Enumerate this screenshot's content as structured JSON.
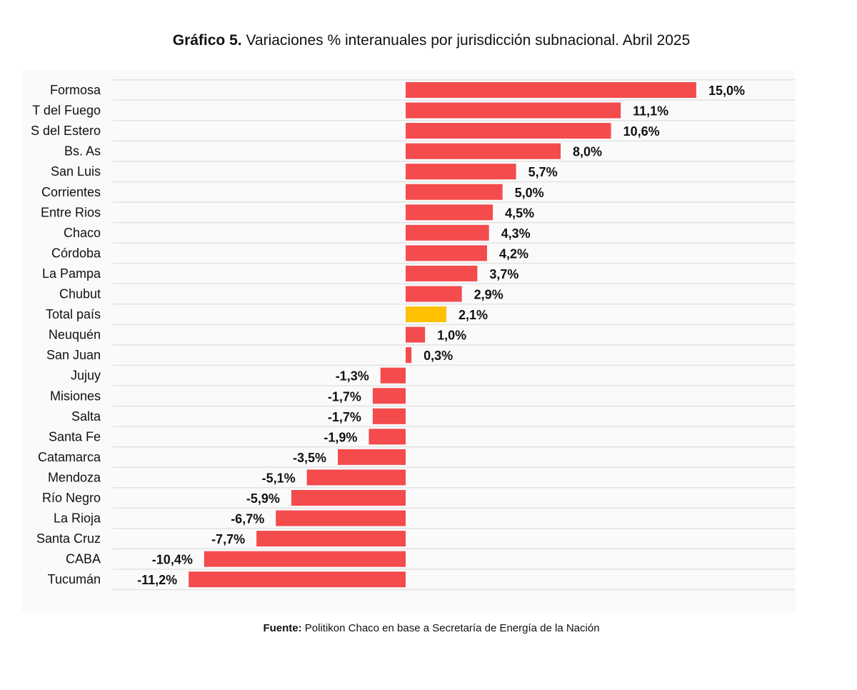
{
  "chart_data": {
    "type": "bar",
    "orientation": "horizontal",
    "title_bold": "Gráfico 5.",
    "title": "Variaciones % interanuales por jurisdicción subnacional. Abril 2025",
    "source_label": "Fuente:",
    "source_text": "Politikon Chaco en base a Secretaría de Energía de la Nación",
    "xlim": [
      -11.2,
      15.0
    ],
    "grid": true,
    "colors": {
      "bar": "#f44b4d",
      "highlight": "#ffc000",
      "grid": "#e2e2e2",
      "plot_background": "#fafafa"
    },
    "categories": [
      "Formosa",
      "T del Fuego",
      "S del Estero",
      "Bs. As",
      "San Luis",
      "Corrientes",
      "Entre Rios",
      "Chaco",
      "Córdoba",
      "La Pampa",
      "Chubut",
      "Total país",
      "Neuquén",
      "San Juan",
      "Jujuy",
      "Misiones",
      "Salta",
      "Santa Fe",
      "Catamarca",
      "Mendoza",
      "Río Negro",
      "La Rioja",
      "Santa Cruz",
      "CABA",
      "Tucumán"
    ],
    "values": [
      15.0,
      11.1,
      10.6,
      8.0,
      5.7,
      5.0,
      4.5,
      4.3,
      4.2,
      3.7,
      2.9,
      2.1,
      1.0,
      0.3,
      -1.3,
      -1.7,
      -1.7,
      -1.9,
      -3.5,
      -5.1,
      -5.9,
      -6.7,
      -7.7,
      -10.4,
      -11.2
    ],
    "value_labels": [
      "15,0%",
      "11,1%",
      "10,6%",
      "8,0%",
      "5,7%",
      "5,0%",
      "4,5%",
      "4,3%",
      "4,2%",
      "3,7%",
      "2,9%",
      "2,1%",
      "1,0%",
      "0,3%",
      "-1,3%",
      "-1,7%",
      "-1,7%",
      "-1,9%",
      "-3,5%",
      "-5,1%",
      "-5,9%",
      "-6,7%",
      "-7,7%",
      "-10,4%",
      "-11,2%"
    ],
    "highlight_category": "Total país"
  }
}
